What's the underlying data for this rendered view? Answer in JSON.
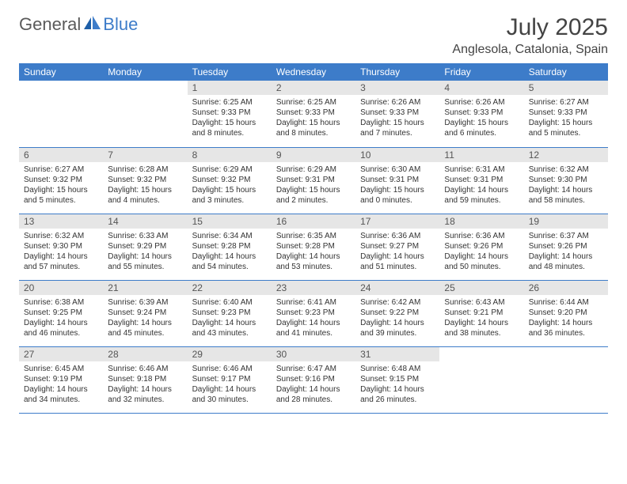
{
  "brand": {
    "part1": "General",
    "part2": "Blue"
  },
  "title": "July 2025",
  "location": "Anglesola, Catalonia, Spain",
  "colors": {
    "header_bg": "#3d7cc9",
    "header_text": "#ffffff",
    "daynum_bg": "#e6e6e6",
    "body_text": "#333333",
    "rule": "#3d7cc9",
    "page_bg": "#ffffff"
  },
  "day_headers": [
    "Sunday",
    "Monday",
    "Tuesday",
    "Wednesday",
    "Thursday",
    "Friday",
    "Saturday"
  ],
  "weeks": [
    [
      null,
      null,
      {
        "n": "1",
        "sr": "6:25 AM",
        "ss": "9:33 PM",
        "dl": "15 hours and 8 minutes."
      },
      {
        "n": "2",
        "sr": "6:25 AM",
        "ss": "9:33 PM",
        "dl": "15 hours and 8 minutes."
      },
      {
        "n": "3",
        "sr": "6:26 AM",
        "ss": "9:33 PM",
        "dl": "15 hours and 7 minutes."
      },
      {
        "n": "4",
        "sr": "6:26 AM",
        "ss": "9:33 PM",
        "dl": "15 hours and 6 minutes."
      },
      {
        "n": "5",
        "sr": "6:27 AM",
        "ss": "9:33 PM",
        "dl": "15 hours and 5 minutes."
      }
    ],
    [
      {
        "n": "6",
        "sr": "6:27 AM",
        "ss": "9:32 PM",
        "dl": "15 hours and 5 minutes."
      },
      {
        "n": "7",
        "sr": "6:28 AM",
        "ss": "9:32 PM",
        "dl": "15 hours and 4 minutes."
      },
      {
        "n": "8",
        "sr": "6:29 AM",
        "ss": "9:32 PM",
        "dl": "15 hours and 3 minutes."
      },
      {
        "n": "9",
        "sr": "6:29 AM",
        "ss": "9:31 PM",
        "dl": "15 hours and 2 minutes."
      },
      {
        "n": "10",
        "sr": "6:30 AM",
        "ss": "9:31 PM",
        "dl": "15 hours and 0 minutes."
      },
      {
        "n": "11",
        "sr": "6:31 AM",
        "ss": "9:31 PM",
        "dl": "14 hours and 59 minutes."
      },
      {
        "n": "12",
        "sr": "6:32 AM",
        "ss": "9:30 PM",
        "dl": "14 hours and 58 minutes."
      }
    ],
    [
      {
        "n": "13",
        "sr": "6:32 AM",
        "ss": "9:30 PM",
        "dl": "14 hours and 57 minutes."
      },
      {
        "n": "14",
        "sr": "6:33 AM",
        "ss": "9:29 PM",
        "dl": "14 hours and 55 minutes."
      },
      {
        "n": "15",
        "sr": "6:34 AM",
        "ss": "9:28 PM",
        "dl": "14 hours and 54 minutes."
      },
      {
        "n": "16",
        "sr": "6:35 AM",
        "ss": "9:28 PM",
        "dl": "14 hours and 53 minutes."
      },
      {
        "n": "17",
        "sr": "6:36 AM",
        "ss": "9:27 PM",
        "dl": "14 hours and 51 minutes."
      },
      {
        "n": "18",
        "sr": "6:36 AM",
        "ss": "9:26 PM",
        "dl": "14 hours and 50 minutes."
      },
      {
        "n": "19",
        "sr": "6:37 AM",
        "ss": "9:26 PM",
        "dl": "14 hours and 48 minutes."
      }
    ],
    [
      {
        "n": "20",
        "sr": "6:38 AM",
        "ss": "9:25 PM",
        "dl": "14 hours and 46 minutes."
      },
      {
        "n": "21",
        "sr": "6:39 AM",
        "ss": "9:24 PM",
        "dl": "14 hours and 45 minutes."
      },
      {
        "n": "22",
        "sr": "6:40 AM",
        "ss": "9:23 PM",
        "dl": "14 hours and 43 minutes."
      },
      {
        "n": "23",
        "sr": "6:41 AM",
        "ss": "9:23 PM",
        "dl": "14 hours and 41 minutes."
      },
      {
        "n": "24",
        "sr": "6:42 AM",
        "ss": "9:22 PM",
        "dl": "14 hours and 39 minutes."
      },
      {
        "n": "25",
        "sr": "6:43 AM",
        "ss": "9:21 PM",
        "dl": "14 hours and 38 minutes."
      },
      {
        "n": "26",
        "sr": "6:44 AM",
        "ss": "9:20 PM",
        "dl": "14 hours and 36 minutes."
      }
    ],
    [
      {
        "n": "27",
        "sr": "6:45 AM",
        "ss": "9:19 PM",
        "dl": "14 hours and 34 minutes."
      },
      {
        "n": "28",
        "sr": "6:46 AM",
        "ss": "9:18 PM",
        "dl": "14 hours and 32 minutes."
      },
      {
        "n": "29",
        "sr": "6:46 AM",
        "ss": "9:17 PM",
        "dl": "14 hours and 30 minutes."
      },
      {
        "n": "30",
        "sr": "6:47 AM",
        "ss": "9:16 PM",
        "dl": "14 hours and 28 minutes."
      },
      {
        "n": "31",
        "sr": "6:48 AM",
        "ss": "9:15 PM",
        "dl": "14 hours and 26 minutes."
      },
      null,
      null
    ]
  ],
  "labels": {
    "sunrise": "Sunrise:",
    "sunset": "Sunset:",
    "daylight": "Daylight:"
  }
}
